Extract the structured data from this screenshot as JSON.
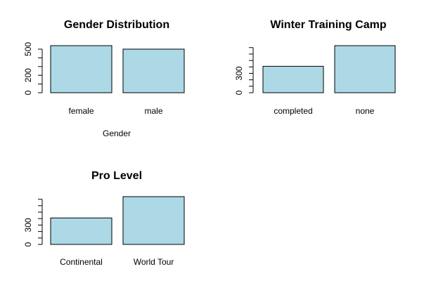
{
  "style": {
    "bar_fill": "#add8e6",
    "bar_stroke": "#000000",
    "background": "#ffffff"
  },
  "chart_data": [
    {
      "type": "bar",
      "title": "Gender Distribution",
      "xlabel": "Gender",
      "ylabel": "",
      "categories": [
        "female",
        "male"
      ],
      "values": [
        540,
        500
      ],
      "ylim": [
        0,
        540
      ],
      "yticks": [
        0,
        200,
        500
      ],
      "yticks_minor": [
        0,
        100,
        200,
        300,
        400,
        500
      ],
      "grid": false
    },
    {
      "type": "bar",
      "title": "Winter Training Camp",
      "xlabel": "",
      "ylabel": "",
      "categories": [
        "completed",
        "none"
      ],
      "values": [
        410,
        730
      ],
      "ylim": [
        0,
        730
      ],
      "yticks": [
        0,
        300
      ],
      "yticks_minor": [
        0,
        100,
        200,
        300,
        400,
        500,
        600,
        700
      ],
      "grid": false
    },
    {
      "type": "bar",
      "title": "Pro Level",
      "xlabel": "",
      "ylabel": "",
      "categories": [
        "Continental",
        "World Tour"
      ],
      "values": [
        410,
        740
      ],
      "ylim": [
        0,
        740
      ],
      "yticks": [
        0,
        300
      ],
      "yticks_minor": [
        0,
        100,
        200,
        300,
        400,
        500,
        600,
        700
      ],
      "grid": false
    }
  ]
}
